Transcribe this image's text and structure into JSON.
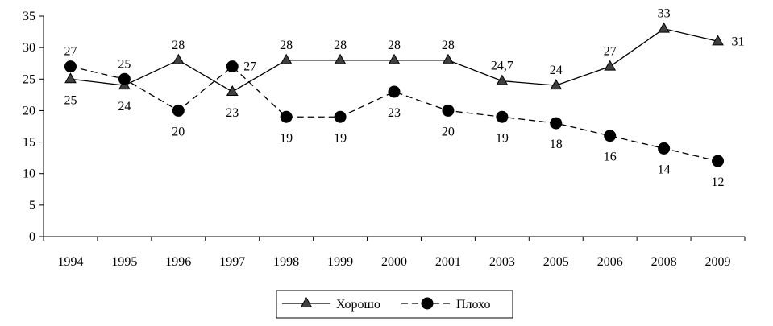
{
  "chart_data": {
    "type": "line",
    "title": "",
    "xlabel": "",
    "ylabel": "",
    "categories": [
      "1994",
      "1995",
      "1996",
      "1997",
      "1998",
      "1999",
      "2000",
      "2001",
      "2003",
      "2005",
      "2006",
      "2008",
      "2009"
    ],
    "ylim": [
      0,
      35
    ],
    "yticks": [
      "0",
      "5",
      "10",
      "15",
      "20",
      "25",
      "30",
      "35"
    ],
    "grid": false,
    "legend_position": "bottom",
    "series": [
      {
        "name": "Хорошо",
        "marker": "triangle",
        "line_style": "solid",
        "color": "#404040",
        "values": [
          25,
          24,
          28,
          23,
          28,
          28,
          28,
          28,
          24.7,
          24,
          27,
          33,
          31
        ],
        "labels": [
          "25",
          "24",
          "28",
          "23",
          "28",
          "28",
          "28",
          "28",
          "24,7",
          "24",
          "27",
          "33",
          "31"
        ]
      },
      {
        "name": "Плохо",
        "marker": "circle",
        "line_style": "dashed",
        "color": "#000000",
        "values": [
          27,
          25,
          20,
          27,
          19,
          19,
          23,
          20,
          19,
          18,
          16,
          14,
          12
        ],
        "labels": [
          "27",
          "25",
          "20",
          "27",
          "19",
          "19",
          "23",
          "20",
          "19",
          "18",
          "16",
          "14",
          "12"
        ]
      }
    ]
  }
}
